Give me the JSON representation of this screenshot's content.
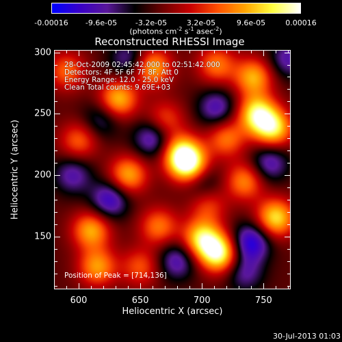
{
  "colorbar": {
    "tick_labels": [
      "-0.00016",
      "-9.6e-05",
      "-3.2e-05",
      "3.2e-05",
      "9.6e-05",
      "0.00016"
    ],
    "units_prefix": "(photons cm",
    "units_exp1": "-2",
    "units_mid": " s",
    "units_exp2": "-1",
    "units_mid2": " asec",
    "units_exp3": "-2",
    "units_suffix": ")",
    "range": [
      -0.00016,
      0.00016
    ],
    "colors": [
      "#0000ff",
      "#3a00c8",
      "#5a189a",
      "#000000",
      "#6e0000",
      "#c80000",
      "#ff5000",
      "#ffa500",
      "#ffff40",
      "#ffffff"
    ]
  },
  "chart_data": {
    "type": "heatmap",
    "title": "Reconstructed RHESSI Image",
    "xlabel": "Heliocentric X (arcsec)",
    "ylabel": "Heliocentric Y (arcsec)",
    "xlim": [
      580,
      772
    ],
    "ylim": [
      107,
      302
    ],
    "x_ticks": [
      "600",
      "650",
      "700",
      "750"
    ],
    "y_ticks": [
      "150",
      "200",
      "250",
      "300"
    ],
    "info_lines": [
      "28-Oct-2009 02:45:42.000 to 02:51:42.000",
      "Detectors: 4F 5F 6F 7F 8F, Att 0",
      "Energy Range: 12.0 - 25.0 keV",
      "Clean     Total counts: 9.69E+03"
    ],
    "peak_label": "Position of Peak = [714,136]",
    "peak": [
      714,
      136
    ],
    "sources": [
      {
        "x": 714,
        "y": 136,
        "v": 1.0
      },
      {
        "x": 700,
        "y": 148,
        "v": 0.85
      },
      {
        "x": 690,
        "y": 208,
        "v": 0.95
      },
      {
        "x": 683,
        "y": 218,
        "v": 0.8
      },
      {
        "x": 640,
        "y": 200,
        "v": 0.7
      },
      {
        "x": 632,
        "y": 262,
        "v": 0.75
      },
      {
        "x": 660,
        "y": 288,
        "v": 0.7
      },
      {
        "x": 712,
        "y": 290,
        "v": 0.55
      },
      {
        "x": 745,
        "y": 250,
        "v": 0.9
      },
      {
        "x": 758,
        "y": 238,
        "v": 0.85
      },
      {
        "x": 742,
        "y": 280,
        "v": 0.7
      },
      {
        "x": 760,
        "y": 165,
        "v": 0.85
      },
      {
        "x": 735,
        "y": 195,
        "v": 0.6
      },
      {
        "x": 610,
        "y": 155,
        "v": 0.7
      },
      {
        "x": 615,
        "y": 125,
        "v": 0.65
      },
      {
        "x": 665,
        "y": 158,
        "v": 0.55
      },
      {
        "x": 600,
        "y": 228,
        "v": 0.5
      },
      {
        "x": 670,
        "y": 245,
        "v": 0.45
      },
      {
        "x": 720,
        "y": 230,
        "v": 0.55
      },
      {
        "x": 650,
        "y": 125,
        "v": 0.45
      },
      {
        "x": 590,
        "y": 285,
        "v": 0.5
      },
      {
        "x": 705,
        "y": 175,
        "v": 0.4
      },
      {
        "x": 660,
        "y": 230,
        "v": -0.55
      },
      {
        "x": 712,
        "y": 255,
        "v": -0.5
      },
      {
        "x": 755,
        "y": 210,
        "v": -0.5
      },
      {
        "x": 625,
        "y": 180,
        "v": -0.6
      },
      {
        "x": 680,
        "y": 130,
        "v": -0.5
      },
      {
        "x": 740,
        "y": 145,
        "v": -0.7
      },
      {
        "x": 595,
        "y": 200,
        "v": -0.45
      },
      {
        "x": 640,
        "y": 295,
        "v": -0.4
      },
      {
        "x": 770,
        "y": 295,
        "v": -0.45
      },
      {
        "x": 700,
        "y": 195,
        "v": -0.35
      },
      {
        "x": 735,
        "y": 120,
        "v": -0.4
      },
      {
        "x": 618,
        "y": 245,
        "v": -0.35
      }
    ]
  },
  "footer": {
    "timestamp": "30-Jul-2013 01:03"
  }
}
